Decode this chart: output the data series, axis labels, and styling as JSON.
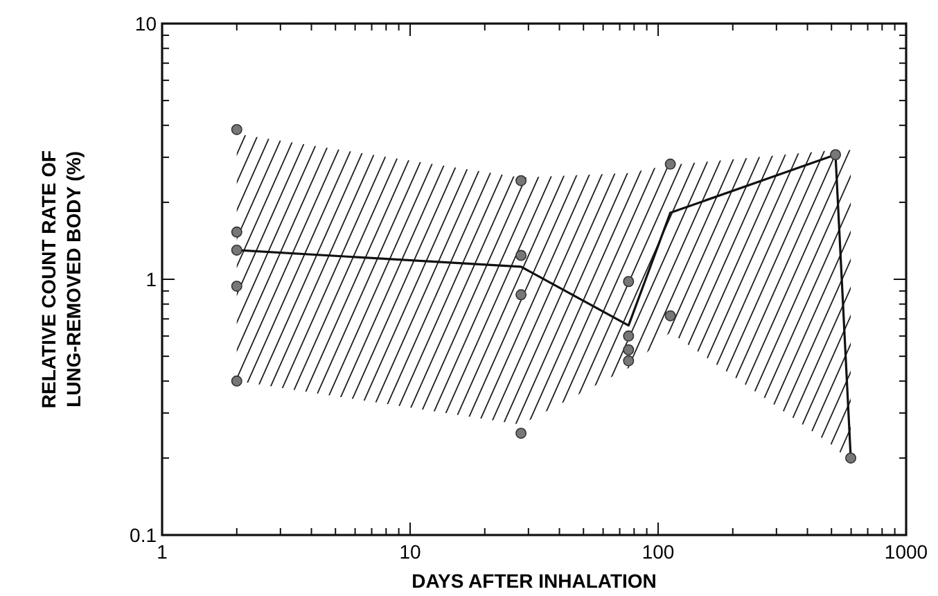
{
  "chart_data": {
    "type": "scatter",
    "xlabel": "DAYS AFTER INHALATION",
    "ylabel": "RELATIVE COUNT RATE OF\nLUNG-REMOVED BODY (%)",
    "log": "xy",
    "xlim": [
      1,
      1000
    ],
    "ylim": [
      0.1,
      10
    ],
    "xticks": [
      1,
      {
        "value": 2,
        "label": null
      },
      {
        "value": 3,
        "label": null
      },
      {
        "value": 4,
        "label": null
      },
      {
        "value": 5,
        "label": null
      },
      {
        "value": 6,
        "label": null
      },
      {
        "value": 7,
        "label": null
      },
      {
        "value": 8,
        "label": null
      },
      {
        "value": 9,
        "label": null
      },
      10,
      {
        "value": 20,
        "label": null
      },
      {
        "value": 30,
        "label": null
      },
      {
        "value": 40,
        "label": null
      },
      {
        "value": 50,
        "label": null
      },
      {
        "value": 60,
        "label": null
      },
      {
        "value": 70,
        "label": null
      },
      {
        "value": 80,
        "label": null
      },
      {
        "value": 90,
        "label": null
      },
      100,
      {
        "value": 200,
        "label": null
      },
      {
        "value": 300,
        "label": null
      },
      {
        "value": 400,
        "label": null
      },
      {
        "value": 500,
        "label": null
      },
      {
        "value": 600,
        "label": null
      },
      {
        "value": 700,
        "label": null
      },
      {
        "value": 800,
        "label": null
      },
      {
        "value": 900,
        "label": null
      },
      1000
    ],
    "yticks": [
      0.1,
      {
        "value": 0.2,
        "label": null
      },
      {
        "value": 0.3,
        "label": null
      },
      {
        "value": 0.4,
        "label": null
      },
      {
        "value": 0.5,
        "label": null
      },
      {
        "value": 0.6,
        "label": null
      },
      {
        "value": 0.7,
        "label": null
      },
      {
        "value": 0.8,
        "label": null
      },
      {
        "value": 0.9,
        "label": null
      },
      1,
      {
        "value": 2,
        "label": null
      },
      {
        "value": 3,
        "label": null
      },
      {
        "value": 4,
        "label": null
      },
      {
        "value": 5,
        "label": null
      },
      {
        "value": 6,
        "label": null
      },
      {
        "value": 7,
        "label": null
      },
      {
        "value": 8,
        "label": null
      },
      {
        "value": 9,
        "label": null
      },
      10
    ],
    "series": [
      {
        "type": "line",
        "color": "#111111",
        "x": [
          2,
          28,
          76,
          112,
          519,
          598
        ],
        "values": [
          1.3,
          1.12,
          0.66,
          1.82,
          3.07,
          0.2
        ],
        "lower": [
          0.4,
          0.27,
          0.45,
          0.62,
          0.22,
          0.19
        ],
        "upper": [
          3.7,
          2.5,
          2.6,
          2.8,
          3.2,
          3.2
        ]
      },
      {
        "marker": "circle",
        "color": "#777777",
        "x": [
          2,
          2,
          2,
          2,
          2,
          28,
          28,
          28,
          28,
          76,
          76,
          76,
          76,
          112,
          112,
          519,
          598
        ],
        "values": [
          3.85,
          1.53,
          1.3,
          0.94,
          0.4,
          2.43,
          1.24,
          0.87,
          0.25,
          0.98,
          0.6,
          0.53,
          0.48,
          2.82,
          0.72,
          3.07,
          0.2
        ]
      }
    ]
  }
}
